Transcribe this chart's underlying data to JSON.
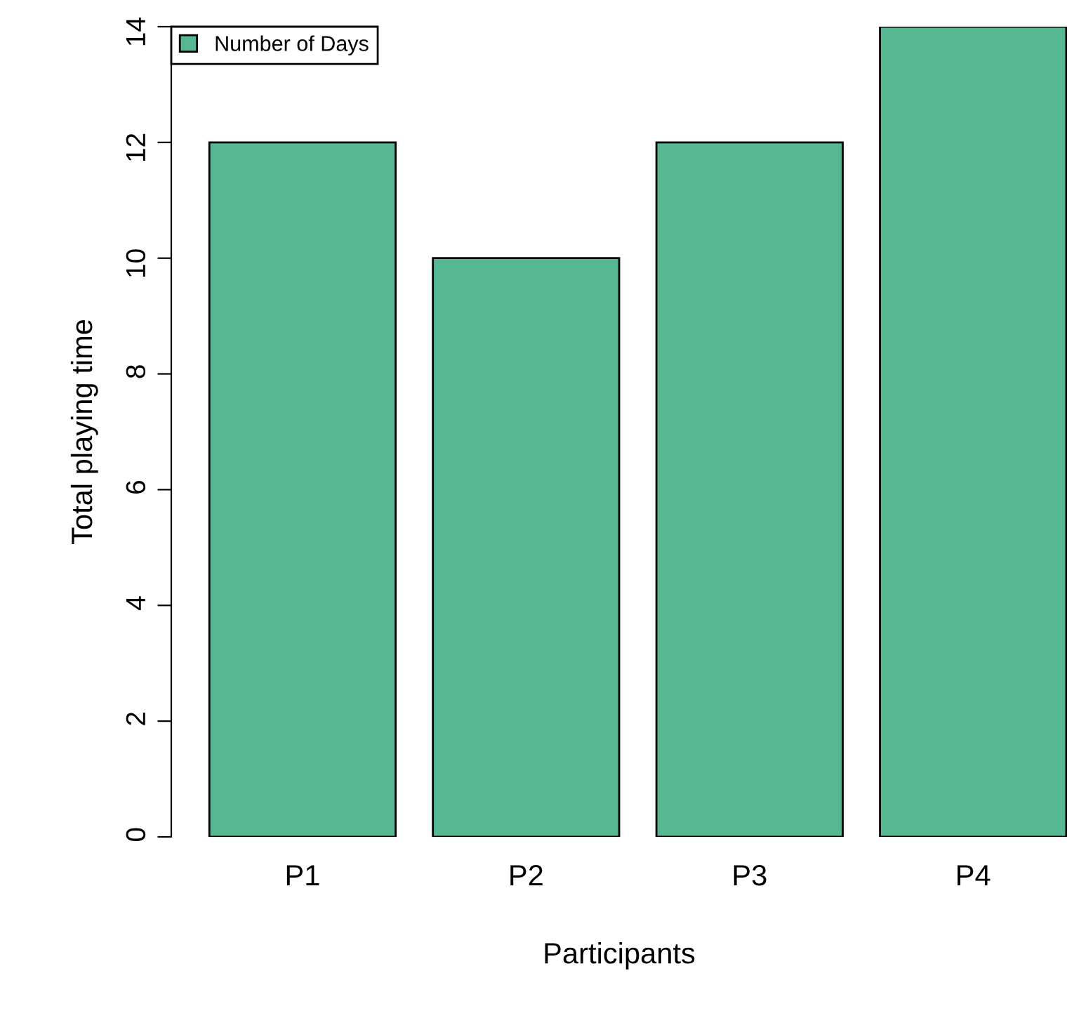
{
  "chart_data": {
    "type": "bar",
    "xlabel": "Participants",
    "ylabel": "Total playing time",
    "categories": [
      "P1",
      "P2",
      "P3",
      "P4"
    ],
    "series": [
      {
        "name": "Number of Days",
        "color": "#55b892",
        "values": [
          12,
          10,
          12,
          14
        ]
      }
    ],
    "ylim": [
      0,
      14
    ],
    "yticks": [
      0,
      2,
      4,
      6,
      8,
      10,
      12,
      14
    ],
    "grid": false,
    "legend": "top left"
  }
}
